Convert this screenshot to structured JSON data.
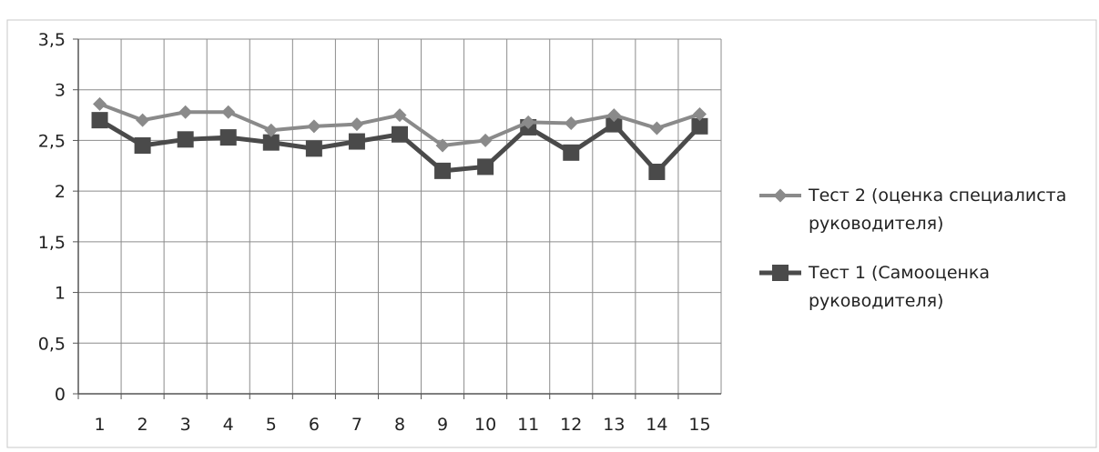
{
  "chart_data": {
    "type": "line",
    "title": "",
    "xlabel": "",
    "ylabel": "",
    "categories": [
      "1",
      "2",
      "3",
      "4",
      "5",
      "6",
      "7",
      "8",
      "9",
      "10",
      "11",
      "12",
      "13",
      "14",
      "15"
    ],
    "y_ticks": [
      "0",
      "0,5",
      "1",
      "1,5",
      "2",
      "2,5",
      "3",
      "3,5"
    ],
    "y_tick_values": [
      0,
      0.5,
      1,
      1.5,
      2,
      2.5,
      3,
      3.5
    ],
    "ylim": [
      0,
      3.5
    ],
    "grid": true,
    "legend_position": "right",
    "series": [
      {
        "name": "Тест 2 (оценка специалиста руководителя)",
        "legend_lines": [
          "Тест 2 (оценка специалиста",
          "руководителя)"
        ],
        "marker": "diamond",
        "color": "#8a8a8a",
        "values": [
          2.86,
          2.7,
          2.78,
          2.78,
          2.6,
          2.64,
          2.66,
          2.75,
          2.45,
          2.5,
          2.68,
          2.67,
          2.75,
          2.62,
          2.76
        ]
      },
      {
        "name": "Тест 1 (Самооценка руководителя)",
        "legend_lines": [
          "Тест 1 (Самооценка",
          "руководителя)"
        ],
        "marker": "square",
        "color": "#4a4a4a",
        "values": [
          2.7,
          2.45,
          2.51,
          2.53,
          2.48,
          2.42,
          2.49,
          2.56,
          2.2,
          2.24,
          2.63,
          2.38,
          2.66,
          2.19,
          2.64
        ]
      }
    ]
  }
}
